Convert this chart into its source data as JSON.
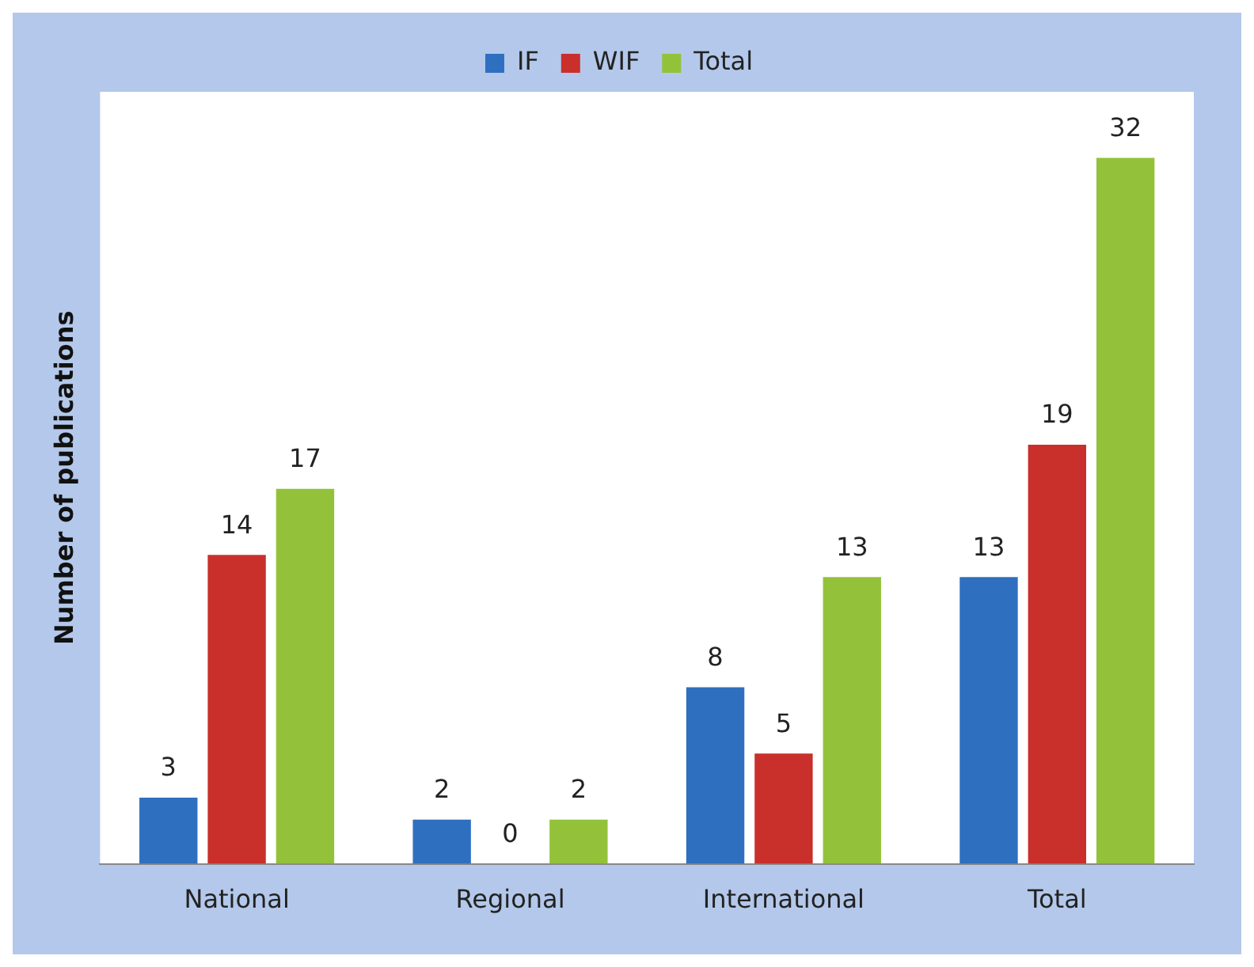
{
  "chart_data": {
    "type": "bar",
    "ylabel": "Number of publications",
    "categories": [
      "National",
      "Regional",
      "International",
      "Total"
    ],
    "series": [
      {
        "name": "IF",
        "color": "#2f6fc0",
        "values": [
          3,
          2,
          8,
          13
        ]
      },
      {
        "name": "WIF",
        "color": "#c9302c",
        "values": [
          14,
          0,
          5,
          19
        ]
      },
      {
        "name": "Total",
        "color": "#93c23a",
        "values": [
          17,
          2,
          13,
          32
        ]
      }
    ],
    "data_labels": true,
    "legend": "top",
    "grid": false,
    "tick_labels": "x"
  }
}
